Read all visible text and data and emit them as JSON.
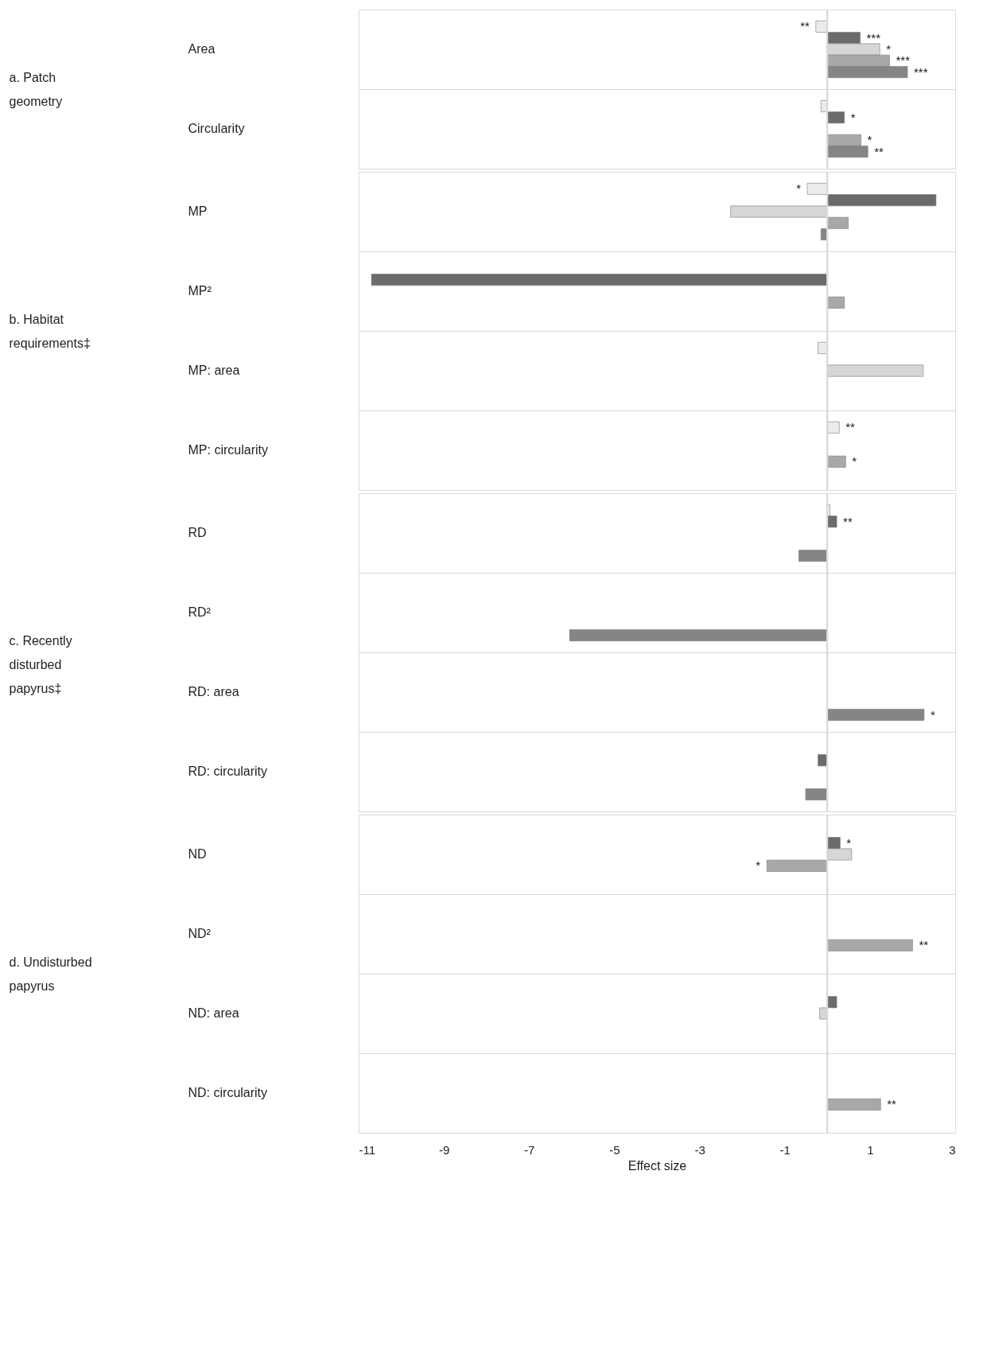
{
  "chart_data": [
    {
      "type": "bar",
      "orientation": "horizontal",
      "ylabel": "a. Patch geometry",
      "categories": [
        "Area",
        "Circularity"
      ],
      "xlim": [
        -11,
        3
      ],
      "xticks": [
        -11,
        -9,
        -7,
        -5,
        -3,
        -1,
        1,
        3
      ],
      "grid": "y",
      "tick_labels": "y",
      "ref_lines": [
        {
          "axis": "x",
          "value": 0,
          "color": "#d9d9d9"
        }
      ],
      "series": [
        {
          "color": "#ececec",
          "values": [
            -0.27,
            -0.15
          ],
          "value_labels": [
            "**",
            null
          ]
        },
        {
          "color": "#6b6b6b",
          "values": [
            0.77,
            0.4
          ],
          "value_labels": [
            "***",
            "*"
          ]
        },
        {
          "color": "#d6d6d6",
          "values": [
            1.23,
            null
          ],
          "value_labels": [
            "*",
            null
          ]
        },
        {
          "color": "#a8a8a8",
          "values": [
            1.46,
            0.79
          ],
          "value_labels": [
            "***",
            "*"
          ]
        },
        {
          "color": "#858585",
          "values": [
            1.88,
            0.95
          ],
          "value_labels": [
            "***",
            "**"
          ]
        }
      ]
    },
    {
      "type": "bar",
      "orientation": "horizontal",
      "ylabel": "b. Habitat requirements‡",
      "categories": [
        "MP",
        "MP²",
        "MP: area",
        "MP: circularity"
      ],
      "xlim": [
        -11,
        3
      ],
      "xticks": [
        -11,
        -9,
        -7,
        -5,
        -3,
        -1,
        1,
        3
      ],
      "grid": "y",
      "tick_labels": "y",
      "ref_lines": [
        {
          "axis": "x",
          "value": 0,
          "color": "#d9d9d9"
        }
      ],
      "series": [
        {
          "color": "#ececec",
          "values": [
            -0.47,
            null,
            -0.22,
            0.28
          ],
          "value_labels": [
            "*",
            null,
            null,
            "**"
          ]
        },
        {
          "color": "#6b6b6b",
          "values": [
            2.55,
            -10.7,
            null,
            null
          ]
        },
        {
          "color": "#d6d6d6",
          "values": [
            -2.27,
            null,
            2.25,
            null
          ]
        },
        {
          "color": "#a8a8a8",
          "values": [
            0.49,
            0.4,
            null,
            0.43
          ],
          "value_labels": [
            null,
            null,
            null,
            "*"
          ]
        },
        {
          "color": "#858585",
          "values": [
            -0.15,
            null,
            null,
            null
          ]
        }
      ]
    },
    {
      "type": "bar",
      "orientation": "horizontal",
      "ylabel": "c. Recently disturbed papyrus‡",
      "categories": [
        "RD",
        "RD²",
        "RD: area",
        "RD: circularity"
      ],
      "xlim": [
        -11,
        3
      ],
      "xticks": [
        -11,
        -9,
        -7,
        -5,
        -3,
        -1,
        1,
        3
      ],
      "grid": "y",
      "tick_labels": "y",
      "ref_lines": [
        {
          "axis": "x",
          "value": 0,
          "color": "#d9d9d9"
        }
      ],
      "series": [
        {
          "color": "#ececec",
          "values": [
            0.06,
            null,
            null,
            null
          ]
        },
        {
          "color": "#6b6b6b",
          "values": [
            0.22,
            null,
            null,
            -0.22
          ],
          "value_labels": [
            "**",
            null,
            null,
            null
          ]
        },
        {
          "color": "#d6d6d6",
          "values": [
            null,
            null,
            null,
            null
          ]
        },
        {
          "color": "#a8a8a8",
          "values": [
            null,
            null,
            null,
            null
          ]
        },
        {
          "color": "#858585",
          "values": [
            -0.67,
            -6.05,
            2.27,
            -0.51
          ],
          "value_labels": [
            null,
            null,
            "*",
            null
          ]
        }
      ]
    },
    {
      "type": "bar",
      "orientation": "horizontal",
      "ylabel": "d. Undisturbed papyrus",
      "categories": [
        "ND",
        "ND²",
        "ND: area",
        "ND: circularity"
      ],
      "xlabel": "Effect size",
      "xlim": [
        -11,
        3
      ],
      "xticks": [
        -11,
        -9,
        -7,
        -5,
        -3,
        -1,
        1,
        3
      ],
      "grid": "y",
      "ref_lines": [
        {
          "axis": "x",
          "value": 0,
          "color": "#d9d9d9"
        }
      ],
      "series": [
        {
          "color": "#ececec",
          "values": [
            null,
            null,
            null,
            null
          ]
        },
        {
          "color": "#6b6b6b",
          "values": [
            0.3,
            null,
            0.22,
            null
          ],
          "value_labels": [
            "*",
            null,
            null,
            null
          ]
        },
        {
          "color": "#d6d6d6",
          "values": [
            0.57,
            null,
            -0.18,
            null
          ]
        },
        {
          "color": "#a8a8a8",
          "values": [
            -1.42,
            2.0,
            null,
            1.25
          ],
          "value_labels": [
            "*",
            "**",
            null,
            "**"
          ]
        },
        {
          "color": "#858585",
          "values": [
            null,
            null,
            null,
            null
          ]
        }
      ]
    }
  ]
}
